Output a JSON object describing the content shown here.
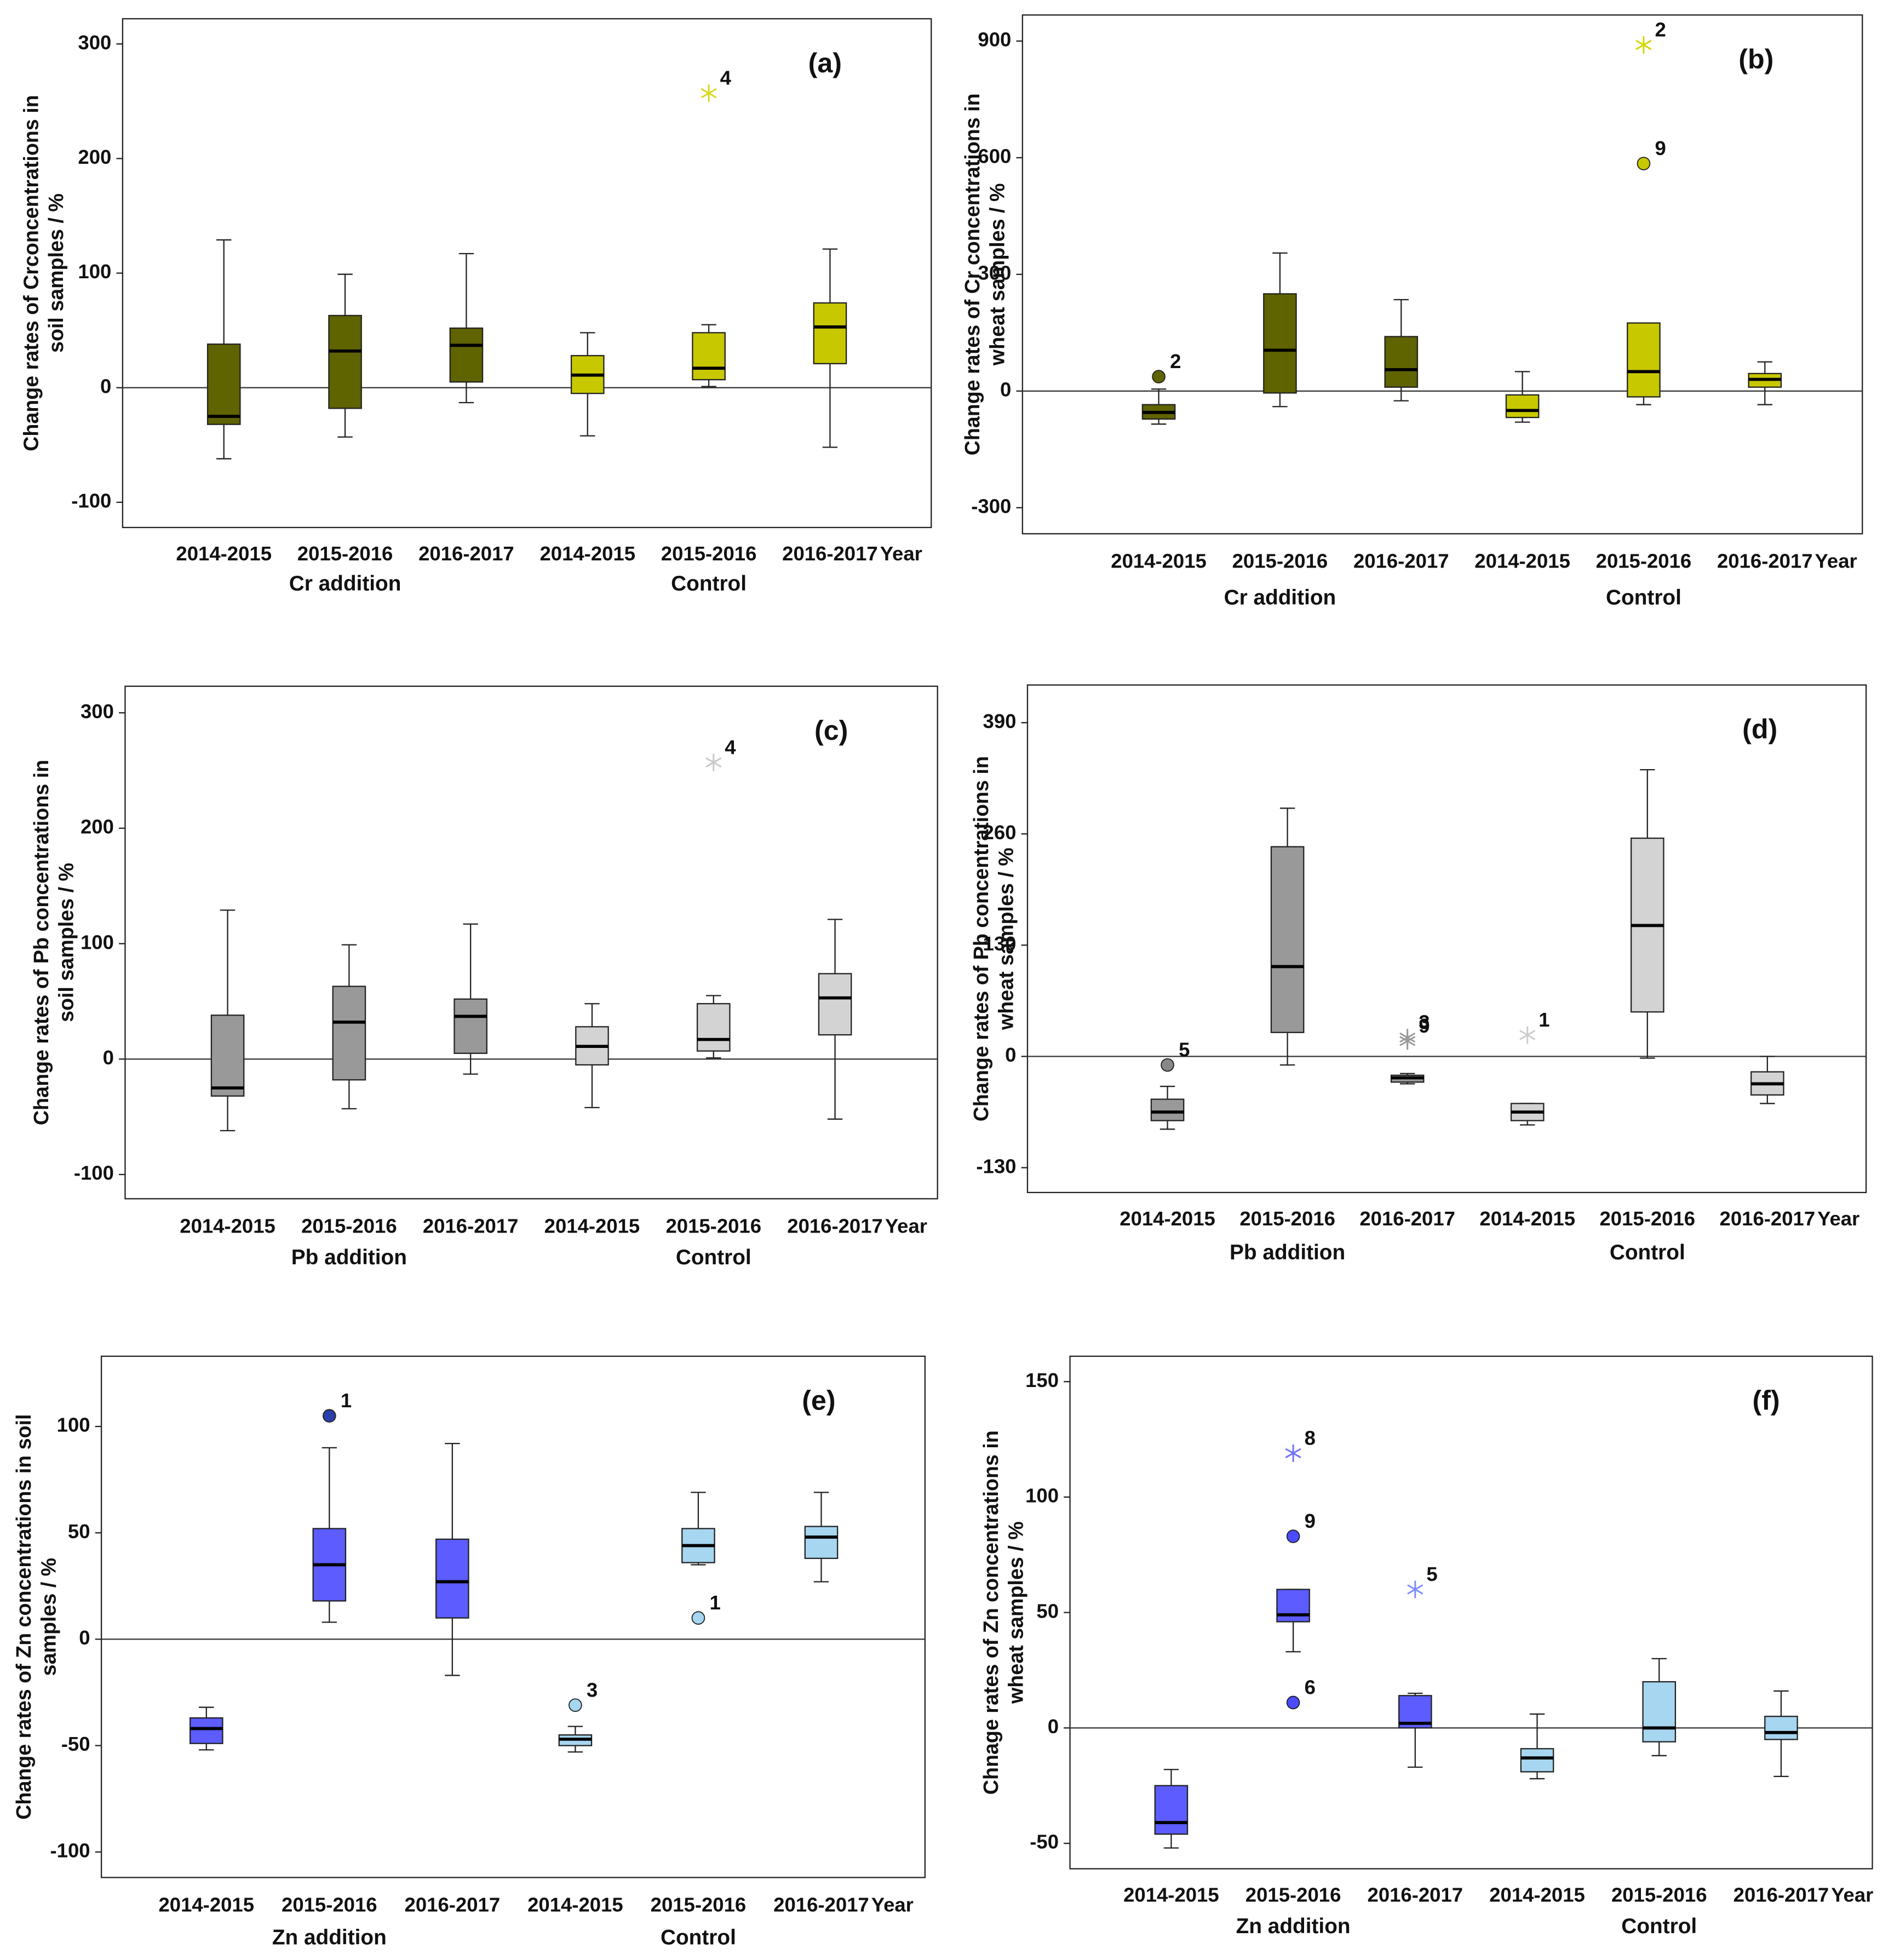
{
  "chart_data": [
    {
      "type": "box",
      "panel_label": "(a)",
      "y_label": [
        "Change rates of Crconcentrations in",
        "soil samples / %"
      ],
      "categories": [
        "2014-2015",
        "2015-2016",
        "2016-2017",
        "2014-2015",
        "2015-2016",
        "2016-2017"
      ],
      "groups": [
        "Cr addition",
        "Control"
      ],
      "x_label": "Year",
      "ylim": [
        -122,
        322
      ],
      "yticks": [
        -100,
        0,
        100,
        200,
        300
      ],
      "reference_line": 0,
      "boxes": [
        {
          "color": "#5f6300",
          "min": -62,
          "q1": -32,
          "median": -25,
          "q3": 38,
          "max": 129,
          "outliers": []
        },
        {
          "color": "#5f6300",
          "min": -43,
          "q1": -18,
          "median": 32,
          "q3": 63,
          "max": 99,
          "outliers": []
        },
        {
          "color": "#5f6300",
          "min": -13,
          "q1": 5,
          "median": 37,
          "q3": 52,
          "max": 117,
          "outliers": []
        },
        {
          "color": "#c8c800",
          "min": -42,
          "q1": -5,
          "median": 11,
          "q3": 28,
          "max": 48,
          "outliers": []
        },
        {
          "color": "#c8c800",
          "min": 1,
          "q1": 7,
          "median": 17,
          "q3": 48,
          "max": 55,
          "outliers": [
            {
              "value": 257,
              "label": "4",
              "marker": "star",
              "color": "#d8d820"
            }
          ]
        },
        {
          "color": "#c8c800",
          "min": -52,
          "q1": 21,
          "median": 53,
          "q3": 74,
          "max": 121,
          "outliers": []
        }
      ]
    },
    {
      "type": "box",
      "panel_label": "(b)",
      "y_label": [
        "Change rates of Cr concentrations in",
        "wheat samples / %"
      ],
      "categories": [
        "2014-2015",
        "2015-2016",
        "2016-2017",
        "2014-2015",
        "2015-2016",
        "2016-2017"
      ],
      "groups": [
        "Cr addition",
        "Control"
      ],
      "x_label": "Year",
      "ylim": [
        -367,
        967
      ],
      "yticks": [
        -300,
        0,
        300,
        600,
        900
      ],
      "reference_line": 0,
      "boxes": [
        {
          "color": "#5f6300",
          "min": -85,
          "q1": -72,
          "median": -55,
          "q3": -35,
          "max": 5,
          "outliers": [
            {
              "value": 37,
              "label": "2",
              "marker": "circle",
              "color": "#5f6300"
            }
          ]
        },
        {
          "color": "#5f6300",
          "min": -40,
          "q1": -5,
          "median": 105,
          "q3": 250,
          "max": 355,
          "outliers": []
        },
        {
          "color": "#5f6300",
          "min": -25,
          "q1": 10,
          "median": 55,
          "q3": 140,
          "max": 235,
          "outliers": []
        },
        {
          "color": "#c8c800",
          "min": -80,
          "q1": -68,
          "median": -50,
          "q3": -10,
          "max": 50,
          "outliers": []
        },
        {
          "color": "#c8c800",
          "min": -35,
          "q1": -15,
          "median": 50,
          "q3": 175,
          "max": 175,
          "outliers": [
            {
              "value": 890,
              "label": "2",
              "marker": "star",
              "color": "#d4d400"
            },
            {
              "value": 585,
              "label": "9",
              "marker": "circle",
              "color": "#c8c800"
            }
          ]
        },
        {
          "color": "#c8c800",
          "min": -35,
          "q1": 10,
          "median": 30,
          "q3": 45,
          "max": 75,
          "outliers": []
        }
      ]
    },
    {
      "type": "box",
      "panel_label": "(c)",
      "y_label": [
        "Change rates of  Pb concentrations in",
        "soil samples / %"
      ],
      "categories": [
        "2014-2015",
        "2015-2016",
        "2016-2017",
        "2014-2015",
        "2015-2016",
        "2016-2017"
      ],
      "groups": [
        "Pb addition",
        "Control"
      ],
      "x_label": "Year",
      "ylim": [
        -121,
        323
      ],
      "yticks": [
        -100,
        0,
        100,
        200,
        300
      ],
      "reference_line": 0,
      "boxes": [
        {
          "color": "#999999",
          "min": -62,
          "q1": -32,
          "median": -25,
          "q3": 38,
          "max": 129,
          "outliers": []
        },
        {
          "color": "#999999",
          "min": -43,
          "q1": -18,
          "median": 32,
          "q3": 63,
          "max": 99,
          "outliers": []
        },
        {
          "color": "#999999",
          "min": -13,
          "q1": 5,
          "median": 37,
          "q3": 52,
          "max": 117,
          "outliers": []
        },
        {
          "color": "#d3d3d3",
          "min": -42,
          "q1": -5,
          "median": 11,
          "q3": 28,
          "max": 48,
          "outliers": []
        },
        {
          "color": "#d3d3d3",
          "min": 1,
          "q1": 7,
          "median": 17,
          "q3": 48,
          "max": 55,
          "outliers": [
            {
              "value": 257,
              "label": "4",
              "marker": "star",
              "color": "#c8c8c8"
            }
          ]
        },
        {
          "color": "#d3d3d3",
          "min": -52,
          "q1": 21,
          "median": 53,
          "q3": 74,
          "max": 121,
          "outliers": []
        }
      ]
    },
    {
      "type": "box",
      "panel_label": "(d)",
      "y_label": [
        "Change rates of  Pb concentrations in",
        "wheat samples / %"
      ],
      "categories": [
        "2014-2015",
        "2015-2016",
        "2016-2017",
        "2014-2015",
        "2015-2016",
        "2016-2017"
      ],
      "groups": [
        "Pb addition",
        "Control"
      ],
      "x_label": "Year",
      "ylim": [
        -159,
        434
      ],
      "yticks": [
        -130,
        0,
        130,
        260,
        390
      ],
      "reference_line": 0,
      "boxes": [
        {
          "color": "#999999",
          "min": -85,
          "q1": -75,
          "median": -65,
          "q3": -50,
          "max": -35,
          "outliers": [
            {
              "value": -10,
              "label": "5",
              "marker": "circle",
              "color": "#888888"
            }
          ]
        },
        {
          "color": "#999999",
          "min": -10,
          "q1": 28,
          "median": 105,
          "q3": 245,
          "max": 290,
          "outliers": []
        },
        {
          "color": "#999999",
          "min": -32,
          "q1": -30,
          "median": -25,
          "q3": -22,
          "max": -20,
          "outliers": [
            {
              "value": 22,
              "label": "3",
              "marker": "star",
              "color": "#999999"
            },
            {
              "value": 18,
              "label": "9",
              "marker": "star",
              "color": "#999999"
            }
          ]
        },
        {
          "color": "#d3d3d3",
          "min": -80,
          "q1": -75,
          "median": -65,
          "q3": -55,
          "max": -55,
          "outliers": [
            {
              "value": 25,
              "label": "1",
              "marker": "star",
              "color": "#cccccc"
            }
          ]
        },
        {
          "color": "#d3d3d3",
          "min": -2,
          "q1": 52,
          "median": 153,
          "q3": 255,
          "max": 335,
          "outliers": []
        },
        {
          "color": "#d3d3d3",
          "min": -55,
          "q1": -45,
          "median": -32,
          "q3": -18,
          "max": 0,
          "outliers": []
        }
      ]
    },
    {
      "type": "box",
      "panel_label": "(e)",
      "y_label": [
        "Change rates of Zn  concentrations in soil",
        "samples / %"
      ],
      "categories": [
        "2014-2015",
        "2015-2016",
        "2016-2017",
        "2014-2015",
        "2015-2016",
        "2016-2017"
      ],
      "groups": [
        "Zn addition",
        "Control"
      ],
      "x_label": "Year",
      "ylim": [
        -112,
        133
      ],
      "yticks": [
        -100,
        -50,
        0,
        50,
        100
      ],
      "reference_line": 0,
      "boxes": [
        {
          "color": "#5c5cff",
          "min": -52,
          "q1": -49,
          "median": -42,
          "q3": -37,
          "max": -32,
          "outliers": []
        },
        {
          "color": "#5c5cff",
          "min": 8,
          "q1": 18,
          "median": 35,
          "q3": 52,
          "max": 90,
          "outliers": [
            {
              "value": 105,
              "label": "1",
              "marker": "circle",
              "color": "#2b3fa8"
            }
          ]
        },
        {
          "color": "#5c5cff",
          "min": -17,
          "q1": 10,
          "median": 27,
          "q3": 47,
          "max": 92,
          "outliers": []
        },
        {
          "color": "#a6d6f0",
          "min": -53,
          "q1": -50,
          "median": -47,
          "q3": -45,
          "max": -41,
          "outliers": [
            {
              "value": -31,
              "label": "3",
              "marker": "circle",
              "color": "#a6d6f0"
            }
          ]
        },
        {
          "color": "#a6d6f0",
          "min": 35,
          "q1": 36,
          "median": 44,
          "q3": 52,
          "max": 69,
          "outliers": [
            {
              "value": 10,
              "label": "1",
              "marker": "circle",
              "color": "#a6d6f0"
            }
          ]
        },
        {
          "color": "#a6d6f0",
          "min": 27,
          "q1": 38,
          "median": 48,
          "q3": 53,
          "max": 69,
          "outliers": []
        }
      ]
    },
    {
      "type": "box",
      "panel_label": "(f)",
      "y_label": [
        "Chnage rates of Zn concentrations in",
        "wheat samples / %"
      ],
      "categories": [
        "2014-2015",
        "2015-2016",
        "2016-2017",
        "2014-2015",
        "2015-2016",
        "2016-2017"
      ],
      "groups": [
        "Zn addition",
        "Control"
      ],
      "x_label": "Year",
      "ylim": [
        -61,
        161
      ],
      "yticks": [
        -50,
        0,
        50,
        100,
        150
      ],
      "reference_line": 0,
      "boxes": [
        {
          "color": "#5c5cff",
          "min": -52,
          "q1": -46,
          "median": -41,
          "q3": -25,
          "max": -18,
          "outliers": []
        },
        {
          "color": "#5c5cff",
          "min": 33,
          "q1": 46,
          "median": 49,
          "q3": 60,
          "max": 60,
          "outliers": [
            {
              "value": 119,
              "label": "8",
              "marker": "star",
              "color": "#7070ff"
            },
            {
              "value": 83,
              "label": "9",
              "marker": "circle",
              "color": "#4a4aff"
            },
            {
              "value": 11,
              "label": "6",
              "marker": "circle",
              "color": "#4a4aff"
            }
          ]
        },
        {
          "color": "#5c5cff",
          "min": -17,
          "q1": 0,
          "median": 2,
          "q3": 14,
          "max": 15,
          "outliers": [
            {
              "value": 60,
              "label": "5",
              "marker": "star",
              "color": "#7b8cff"
            }
          ]
        },
        {
          "color": "#a6d6f0",
          "min": -22,
          "q1": -19,
          "median": -13,
          "q3": -9,
          "max": 6,
          "outliers": []
        },
        {
          "color": "#a6d6f0",
          "min": -12,
          "q1": -6,
          "median": 0,
          "q3": 20,
          "max": 30,
          "outliers": []
        },
        {
          "color": "#a6d6f0",
          "min": -21,
          "q1": -5,
          "median": -2,
          "q3": 5,
          "max": 16,
          "outliers": []
        }
      ]
    }
  ]
}
